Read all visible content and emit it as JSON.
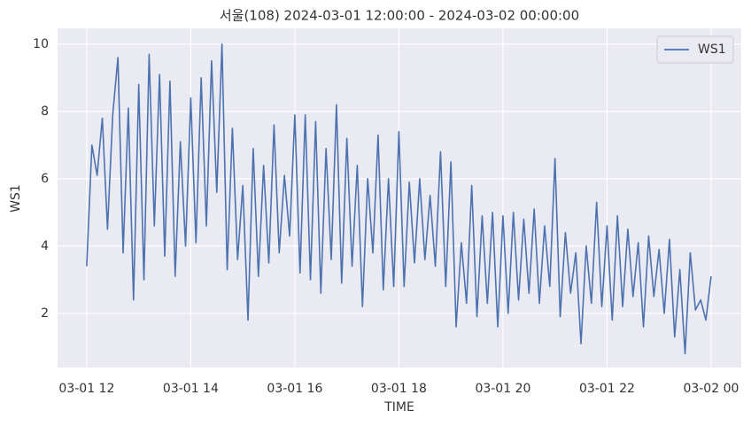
{
  "chart_data": {
    "type": "line",
    "title": "서울(108) 2024-03-01 12:00:00 - 2024-03-02 00:00:00",
    "xlabel": "TIME",
    "ylabel": "WS1",
    "x": [
      12,
      12.1,
      12.2,
      12.3,
      12.4,
      12.5,
      12.6,
      12.7,
      12.8,
      12.9,
      13,
      13.1,
      13.2,
      13.3,
      13.4,
      13.5,
      13.6,
      13.7,
      13.8,
      13.9,
      14,
      14.1,
      14.2,
      14.3,
      14.4,
      14.5,
      14.6,
      14.7,
      14.8,
      14.9,
      15,
      15.1,
      15.2,
      15.3,
      15.4,
      15.5,
      15.6,
      15.7,
      15.8,
      15.9,
      16,
      16.1,
      16.2,
      16.3,
      16.4,
      16.5,
      16.6,
      16.7,
      16.8,
      16.9,
      17,
      17.1,
      17.2,
      17.3,
      17.4,
      17.5,
      17.6,
      17.7,
      17.8,
      17.9,
      18,
      18.1,
      18.2,
      18.3,
      18.4,
      18.5,
      18.6,
      18.7,
      18.8,
      18.9,
      19,
      19.1,
      19.2,
      19.3,
      19.4,
      19.5,
      19.6,
      19.7,
      19.8,
      19.9,
      20,
      20.1,
      20.2,
      20.3,
      20.4,
      20.5,
      20.6,
      20.7,
      20.8,
      20.9,
      21,
      21.1,
      21.2,
      21.3,
      21.4,
      21.5,
      21.6,
      21.7,
      21.8,
      21.9,
      22,
      22.1,
      22.2,
      22.3,
      22.4,
      22.5,
      22.6,
      22.7,
      22.8,
      22.9,
      23,
      23.1,
      23.2,
      23.3,
      23.4,
      23.5,
      23.6,
      23.7,
      23.8,
      23.9,
      24
    ],
    "series": [
      {
        "name": "WS1",
        "color": "#4c72b0",
        "values": [
          3.4,
          7.0,
          6.1,
          7.8,
          4.5,
          7.9,
          9.6,
          3.8,
          8.1,
          2.4,
          8.8,
          3.0,
          9.7,
          4.6,
          9.1,
          3.7,
          8.9,
          3.1,
          7.1,
          4.0,
          8.4,
          4.1,
          9.0,
          4.6,
          9.5,
          5.6,
          10.0,
          3.3,
          7.5,
          3.6,
          5.8,
          1.8,
          6.9,
          3.1,
          6.4,
          3.5,
          7.6,
          3.8,
          6.1,
          4.3,
          7.9,
          3.2,
          7.9,
          3.0,
          7.7,
          2.6,
          6.9,
          3.6,
          8.2,
          2.9,
          7.2,
          3.4,
          6.4,
          2.2,
          6.0,
          3.8,
          7.3,
          2.7,
          6.0,
          2.8,
          7.4,
          2.8,
          5.9,
          3.5,
          6.0,
          3.6,
          5.5,
          3.4,
          6.8,
          2.8,
          6.5,
          1.6,
          4.1,
          2.3,
          5.8,
          1.9,
          4.9,
          2.3,
          5.0,
          1.6,
          4.9,
          2.0,
          5.0,
          2.4,
          4.8,
          2.6,
          5.1,
          2.3,
          4.6,
          2.8,
          6.6,
          1.9,
          4.4,
          2.6,
          3.8,
          1.1,
          4.0,
          2.3,
          5.3,
          2.2,
          4.6,
          1.8,
          4.9,
          2.2,
          4.5,
          2.5,
          4.1,
          1.6,
          4.3,
          2.5,
          3.9,
          2.0,
          4.2,
          1.3,
          3.3,
          0.8,
          3.8,
          2.1,
          2.4,
          1.8,
          3.1
        ]
      }
    ],
    "xlim": [
      11.44,
      24.58
    ],
    "xticks": [
      {
        "value": 12,
        "label": "03-01 12"
      },
      {
        "value": 14,
        "label": "03-01 14"
      },
      {
        "value": 16,
        "label": "03-01 16"
      },
      {
        "value": 18,
        "label": "03-01 18"
      },
      {
        "value": 20,
        "label": "03-01 20"
      },
      {
        "value": 22,
        "label": "03-01 22"
      },
      {
        "value": 24,
        "label": "03-02 00"
      }
    ],
    "ylim": [
      0.39,
      10.47
    ],
    "yticks": [
      2,
      4,
      6,
      8,
      10
    ],
    "grid": true,
    "legend": "upper right"
  }
}
